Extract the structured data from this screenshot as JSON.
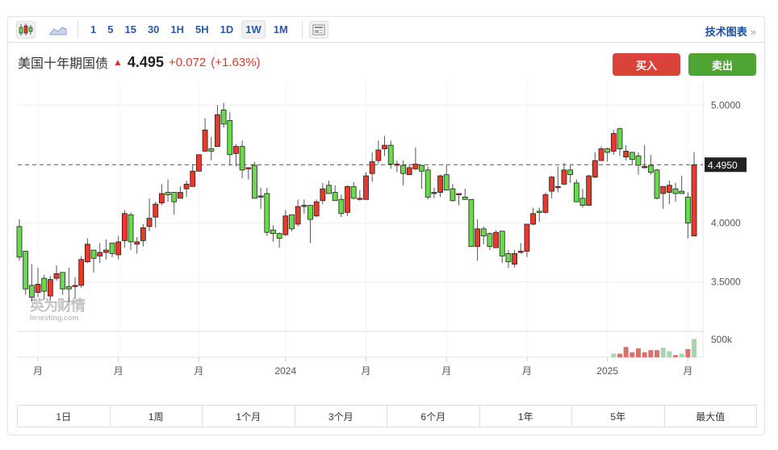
{
  "toolbar": {
    "chart_types": [
      "candlestick-icon",
      "area-chart-icon"
    ],
    "intervals": [
      "1",
      "5",
      "15",
      "30",
      "1H",
      "5H",
      "1D",
      "1W",
      "1M"
    ],
    "active_interval": "1W",
    "layout_icon": "layout-icon",
    "tech_chart": "技术图表",
    "tech_chart_arrow": "»"
  },
  "instrument": {
    "name": "美国十年期国债",
    "direction_icon": "arrow-up-icon",
    "price": "4.495",
    "change": "+0.072",
    "change_pct": "(+1.63%)"
  },
  "actions": {
    "buy": "买入",
    "sell": "卖出"
  },
  "colors": {
    "up": "#e8392a",
    "down": "#6ad94c",
    "buy": "#d9433a",
    "sell": "#4ea534",
    "link": "#2a5aa8"
  },
  "watermark": {
    "cn": "英为财情",
    "en": "Investing.com"
  },
  "chart_data": {
    "type": "candlestick",
    "ylim": [
      3.3,
      5.05
    ],
    "y_ticks": [
      "5.0000",
      "4.0000",
      "3.5000"
    ],
    "y_tick_values": [
      5.0,
      4.0,
      3.5
    ],
    "last_price_label": "4.4950",
    "last_price": 4.495,
    "x_tick_labels": [
      "月",
      "月",
      "月",
      "2024",
      "月",
      "月",
      "月",
      "2025",
      "月"
    ],
    "x_tick_candle_index": [
      3,
      16,
      29,
      43,
      56,
      69,
      82,
      95,
      108
    ],
    "grid": true,
    "candles_ohlc": [
      [
        3.97,
        4.03,
        3.68,
        3.71
      ],
      [
        3.76,
        3.76,
        3.39,
        3.44
      ],
      [
        3.47,
        3.65,
        3.33,
        3.37
      ],
      [
        3.41,
        3.62,
        3.37,
        3.48
      ],
      [
        3.53,
        3.56,
        3.35,
        3.42
      ],
      [
        3.38,
        3.55,
        3.35,
        3.52
      ],
      [
        3.53,
        3.64,
        3.51,
        3.57
      ],
      [
        3.58,
        3.58,
        3.39,
        3.44
      ],
      [
        3.46,
        3.62,
        3.33,
        3.44
      ],
      [
        3.46,
        3.54,
        3.36,
        3.47
      ],
      [
        3.47,
        3.72,
        3.45,
        3.69
      ],
      [
        3.67,
        3.87,
        3.66,
        3.82
      ],
      [
        3.77,
        3.77,
        3.58,
        3.7
      ],
      [
        3.72,
        3.83,
        3.66,
        3.75
      ],
      [
        3.75,
        3.86,
        3.69,
        3.77
      ],
      [
        3.83,
        3.83,
        3.71,
        3.74
      ],
      [
        3.73,
        3.89,
        3.69,
        3.84
      ],
      [
        3.85,
        4.11,
        3.79,
        4.08
      ],
      [
        4.07,
        4.09,
        3.77,
        3.84
      ],
      [
        3.82,
        3.88,
        3.74,
        3.84
      ],
      [
        3.85,
        3.99,
        3.8,
        3.96
      ],
      [
        3.97,
        4.21,
        3.93,
        4.04
      ],
      [
        4.05,
        4.18,
        3.96,
        4.16
      ],
      [
        4.17,
        4.33,
        4.15,
        4.25
      ],
      [
        4.26,
        4.37,
        4.18,
        4.24
      ],
      [
        4.26,
        4.26,
        4.07,
        4.18
      ],
      [
        4.21,
        4.31,
        4.21,
        4.26
      ],
      [
        4.29,
        4.36,
        4.22,
        4.33
      ],
      [
        4.31,
        4.5,
        4.31,
        4.44
      ],
      [
        4.44,
        4.58,
        4.44,
        4.58
      ],
      [
        4.61,
        4.89,
        4.61,
        4.79
      ],
      [
        4.63,
        4.73,
        4.53,
        4.61
      ],
      [
        4.65,
        5.0,
        4.65,
        4.92
      ],
      [
        4.96,
        5.02,
        4.81,
        4.84
      ],
      [
        4.87,
        4.94,
        4.49,
        4.58
      ],
      [
        4.59,
        4.67,
        4.48,
        4.65
      ],
      [
        4.65,
        4.7,
        4.38,
        4.45
      ],
      [
        4.47,
        4.47,
        4.37,
        4.47
      ],
      [
        4.49,
        4.52,
        4.21,
        4.21
      ],
      [
        4.23,
        4.3,
        4.12,
        4.23
      ],
      [
        4.25,
        4.3,
        3.89,
        3.92
      ],
      [
        3.94,
        3.98,
        3.84,
        3.91
      ],
      [
        3.91,
        3.92,
        3.79,
        3.87
      ],
      [
        3.9,
        4.11,
        3.89,
        4.06
      ],
      [
        4.07,
        4.07,
        3.93,
        3.95
      ],
      [
        3.99,
        4.2,
        3.97,
        4.14
      ],
      [
        4.15,
        4.2,
        4.08,
        4.15
      ],
      [
        4.15,
        4.15,
        3.83,
        4.03
      ],
      [
        4.06,
        4.2,
        4.05,
        4.18
      ],
      [
        4.19,
        4.34,
        4.16,
        4.29
      ],
      [
        4.32,
        4.36,
        4.25,
        4.25
      ],
      [
        4.26,
        4.32,
        4.19,
        4.19
      ],
      [
        4.2,
        4.24,
        4.05,
        4.08
      ],
      [
        4.09,
        4.32,
        4.06,
        4.31
      ],
      [
        4.31,
        4.35,
        4.2,
        4.21
      ],
      [
        4.21,
        4.28,
        4.19,
        4.21
      ],
      [
        4.2,
        4.43,
        4.2,
        4.4
      ],
      [
        4.42,
        4.6,
        4.35,
        4.52
      ],
      [
        4.53,
        4.7,
        4.5,
        4.62
      ],
      [
        4.63,
        4.74,
        4.57,
        4.66
      ],
      [
        4.66,
        4.7,
        4.46,
        4.5
      ],
      [
        4.49,
        4.53,
        4.43,
        4.5
      ],
      [
        4.49,
        4.53,
        4.32,
        4.42
      ],
      [
        4.41,
        4.5,
        4.41,
        4.47
      ],
      [
        4.46,
        4.64,
        4.45,
        4.5
      ],
      [
        4.49,
        4.49,
        4.29,
        4.44
      ],
      [
        4.45,
        4.48,
        4.2,
        4.22
      ],
      [
        4.25,
        4.3,
        4.21,
        4.26
      ],
      [
        4.26,
        4.41,
        4.22,
        4.4
      ],
      [
        4.41,
        4.49,
        4.28,
        4.28
      ],
      [
        4.29,
        4.33,
        4.18,
        4.19
      ],
      [
        4.25,
        4.25,
        4.15,
        4.25
      ],
      [
        4.22,
        4.29,
        4.2,
        4.2
      ],
      [
        4.2,
        4.2,
        3.8,
        3.8
      ],
      [
        3.8,
        4.03,
        3.68,
        3.95
      ],
      [
        3.95,
        3.97,
        3.82,
        3.89
      ],
      [
        3.91,
        3.92,
        3.77,
        3.8
      ],
      [
        3.79,
        3.94,
        3.79,
        3.92
      ],
      [
        3.93,
        3.93,
        3.66,
        3.72
      ],
      [
        3.74,
        3.77,
        3.62,
        3.67
      ],
      [
        3.65,
        3.77,
        3.62,
        3.74
      ],
      [
        3.76,
        3.83,
        3.74,
        3.76
      ],
      [
        3.76,
        3.99,
        3.71,
        3.99
      ],
      [
        3.99,
        4.13,
        3.98,
        4.08
      ],
      [
        4.1,
        4.13,
        4.01,
        4.09
      ],
      [
        4.09,
        4.26,
        4.08,
        4.24
      ],
      [
        4.27,
        4.4,
        4.21,
        4.39
      ],
      [
        4.31,
        4.48,
        4.26,
        4.31
      ],
      [
        4.33,
        4.51,
        4.32,
        4.45
      ],
      [
        4.45,
        4.49,
        4.34,
        4.41
      ],
      [
        4.34,
        4.37,
        4.18,
        4.18
      ],
      [
        4.21,
        4.29,
        4.13,
        4.15
      ],
      [
        4.15,
        4.41,
        4.15,
        4.4
      ],
      [
        4.39,
        4.6,
        4.38,
        4.53
      ],
      [
        4.53,
        4.65,
        4.53,
        4.63
      ],
      [
        4.63,
        4.64,
        4.52,
        4.6
      ],
      [
        4.61,
        4.79,
        4.58,
        4.76
      ],
      [
        4.8,
        4.81,
        4.57,
        4.63
      ],
      [
        4.56,
        4.66,
        4.53,
        4.61
      ],
      [
        4.6,
        4.6,
        4.49,
        4.54
      ],
      [
        4.57,
        4.6,
        4.41,
        4.49
      ],
      [
        4.48,
        4.66,
        4.46,
        4.48
      ],
      [
        4.49,
        4.58,
        4.41,
        4.43
      ],
      [
        4.45,
        4.46,
        4.2,
        4.21
      ],
      [
        4.25,
        4.31,
        4.12,
        4.31
      ],
      [
        4.26,
        4.36,
        4.16,
        4.32
      ],
      [
        4.29,
        4.34,
        4.18,
        4.25
      ],
      [
        4.27,
        4.4,
        4.25,
        4.25
      ],
      [
        4.22,
        4.26,
        3.87,
        4.0
      ],
      [
        3.89,
        4.6,
        3.89,
        4.495
      ]
    ],
    "volume_tick": "500k",
    "volume": [
      {
        "v": 100000,
        "color": "#a8d5b0"
      },
      {
        "v": 100000,
        "color": "#d9726a"
      },
      {
        "v": 290000,
        "color": "#d9726a"
      },
      {
        "v": 140000,
        "color": "#d9726a"
      },
      {
        "v": 250000,
        "color": "#d9726a"
      },
      {
        "v": 140000,
        "color": "#d9726a"
      },
      {
        "v": 200000,
        "color": "#d9726a"
      },
      {
        "v": 200000,
        "color": "#d9726a"
      },
      {
        "v": 270000,
        "color": "#a8d5b0"
      },
      {
        "v": 170000,
        "color": "#a8d5b0"
      },
      {
        "v": 60000,
        "color": "#d9726a"
      },
      {
        "v": 100000,
        "color": "#a8d5b0"
      },
      {
        "v": 230000,
        "color": "#d9726a"
      },
      {
        "v": 515000,
        "color": "#a8d5b0"
      }
    ]
  },
  "ranges": [
    "1日",
    "1周",
    "1个月",
    "3个月",
    "6个月",
    "1年",
    "5年",
    "最大值"
  ]
}
